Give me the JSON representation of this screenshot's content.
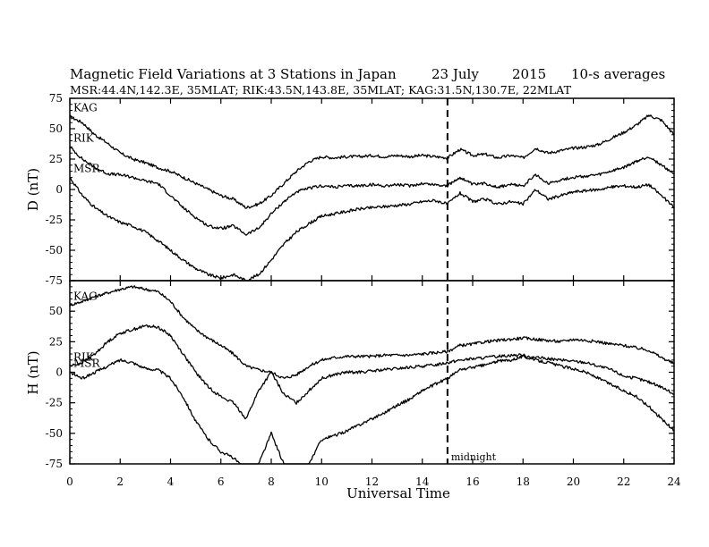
{
  "header": {
    "title": "Magnetic Field Variations at 3 Stations in Japan",
    "date": "23 July",
    "year": "2015",
    "averaging": "10-s averages",
    "stations_line": "MSR:44.4N,142.3E, 35MLAT;  RIK:43.5N,143.8E, 35MLAT;  KAG:31.5N,130.7E, 22MLAT"
  },
  "chart_data": {
    "type": "line",
    "xlabel": "Universal Time",
    "xlim": [
      0,
      24
    ],
    "x_ticks": [
      0,
      2,
      4,
      6,
      8,
      10,
      12,
      14,
      16,
      18,
      20,
      22,
      24
    ],
    "marker": {
      "x": 15,
      "label": "midnight",
      "style": "dashed"
    },
    "panels": [
      {
        "id": "D",
        "ylabel": "D (nT)",
        "ylim": [
          -75,
          75
        ],
        "y_ticks": [
          75,
          50,
          25,
          0,
          -25,
          -50,
          -75
        ],
        "series": [
          {
            "name": "KAG",
            "x": [
              0,
              0.5,
              1,
              1.5,
              2,
              2.5,
              3,
              3.5,
              4,
              4.5,
              5,
              5.5,
              6,
              6.5,
              7,
              7.5,
              8,
              8.5,
              9,
              9.5,
              10,
              10.5,
              11,
              11.5,
              12,
              12.5,
              13,
              13.5,
              14,
              14.5,
              15,
              15.5,
              16,
              16.5,
              17,
              17.5,
              18,
              18.5,
              19,
              19.5,
              20,
              20.5,
              21,
              21.5,
              22,
              22.5,
              23,
              23.5,
              24
            ],
            "y": [
              60,
              55,
              45,
              38,
              30,
              25,
              22,
              18,
              15,
              10,
              5,
              0,
              -5,
              -8,
              -15,
              -12,
              -5,
              5,
              15,
              23,
              27,
              26,
              27,
              27,
              28,
              27,
              28,
              27,
              28,
              27,
              26,
              33,
              28,
              29,
              26,
              28,
              26,
              34,
              30,
              32,
              34,
              35,
              37,
              42,
              47,
              53,
              61,
              57,
              45
            ]
          },
          {
            "name": "RIK",
            "x": [
              0,
              0.5,
              1,
              1.5,
              2,
              2.5,
              3,
              3.5,
              4,
              4.5,
              5,
              5.5,
              6,
              6.5,
              7,
              7.5,
              8,
              8.5,
              9,
              9.5,
              10,
              10.5,
              11,
              11.5,
              12,
              12.5,
              13,
              13.5,
              14,
              14.5,
              15,
              15.5,
              16,
              16.5,
              17,
              17.5,
              18,
              18.5,
              19,
              19.5,
              20,
              20.5,
              21,
              21.5,
              22,
              22.5,
              23,
              23.5,
              24
            ],
            "y": [
              35,
              25,
              18,
              13,
              12,
              10,
              7,
              5,
              -5,
              -15,
              -23,
              -30,
              -32,
              -30,
              -37,
              -32,
              -20,
              -10,
              -2,
              1,
              3,
              2,
              3,
              3,
              4,
              3,
              4,
              3,
              5,
              4,
              3,
              10,
              4,
              5,
              2,
              4,
              3,
              12,
              5,
              8,
              10,
              11,
              12,
              15,
              18,
              23,
              27,
              20,
              13
            ]
          },
          {
            "name": "MSR",
            "x": [
              0,
              0.5,
              1,
              1.5,
              2,
              2.5,
              3,
              3.5,
              4,
              4.5,
              5,
              5.5,
              6,
              6.5,
              7,
              7.5,
              8,
              8.5,
              9,
              9.5,
              10,
              10.5,
              11,
              11.5,
              12,
              12.5,
              13,
              13.5,
              14,
              14.5,
              15,
              15.5,
              16,
              16.5,
              17,
              17.5,
              18,
              18.5,
              19,
              19.5,
              20,
              20.5,
              21,
              21.5,
              22,
              22.5,
              23,
              23.5,
              24
            ],
            "y": [
              10,
              -5,
              -15,
              -22,
              -27,
              -30,
              -35,
              -42,
              -50,
              -58,
              -65,
              -70,
              -73,
              -70,
              -75,
              -70,
              -58,
              -45,
              -35,
              -28,
              -22,
              -20,
              -18,
              -16,
              -15,
              -14,
              -13,
              -12,
              -10,
              -9,
              -12,
              -3,
              -10,
              -8,
              -12,
              -10,
              -12,
              0,
              -8,
              -5,
              -2,
              -1,
              0,
              2,
              3,
              2,
              4,
              -5,
              -15
            ]
          }
        ]
      },
      {
        "id": "H",
        "ylabel": "H (nT)",
        "ylim": [
          -75,
          75
        ],
        "y_ticks": [
          75,
          50,
          25,
          0,
          -25,
          -50,
          -75
        ],
        "series": [
          {
            "name": "KAG",
            "x": [
              0,
              0.5,
              1,
              1.5,
              2,
              2.5,
              3,
              3.5,
              4,
              4.5,
              5,
              5.5,
              6,
              6.5,
              7,
              7.5,
              8,
              8.5,
              9,
              9.5,
              10,
              10.5,
              11,
              11.5,
              12,
              12.5,
              13,
              13.5,
              14,
              14.5,
              15,
              15.5,
              16,
              16.5,
              17,
              17.5,
              18,
              18.5,
              19,
              19.5,
              20,
              20.5,
              21,
              21.5,
              22,
              22.5,
              23,
              23.5,
              24
            ],
            "y": [
              55,
              58,
              62,
              65,
              68,
              70,
              68,
              66,
              58,
              45,
              35,
              28,
              22,
              15,
              5,
              2,
              0,
              -5,
              -2,
              5,
              10,
              12,
              13,
              13,
              13,
              14,
              14,
              14,
              15,
              16,
              17,
              22,
              23,
              25,
              26,
              27,
              28,
              27,
              26,
              25,
              27,
              26,
              25,
              23,
              22,
              20,
              18,
              12,
              7
            ]
          },
          {
            "name": "RIK",
            "x": [
              0,
              0.5,
              1,
              1.5,
              2,
              2.5,
              3,
              3.5,
              4,
              4.5,
              5,
              5.5,
              6,
              6.5,
              7,
              7.5,
              8,
              8.5,
              9,
              9.5,
              10,
              10.5,
              11,
              11.5,
              12,
              12.5,
              13,
              13.5,
              14,
              14.5,
              15,
              15.5,
              16,
              16.5,
              17,
              17.5,
              18,
              18.5,
              19,
              19.5,
              20,
              20.5,
              21,
              21.5,
              22,
              22.5,
              23,
              23.5,
              24
            ],
            "y": [
              5,
              8,
              15,
              25,
              32,
              35,
              38,
              37,
              30,
              15,
              0,
              -12,
              -20,
              -25,
              -38,
              -15,
              0,
              -18,
              -25,
              -15,
              -5,
              -2,
              0,
              0,
              1,
              2,
              3,
              4,
              5,
              6,
              8,
              10,
              11,
              12,
              13,
              14,
              14,
              12,
              11,
              10,
              9,
              8,
              5,
              2,
              -3,
              -5,
              -8,
              -12,
              -18
            ]
          },
          {
            "name": "MSR",
            "x": [
              0,
              0.5,
              1,
              1.5,
              2,
              2.5,
              3,
              3.5,
              4,
              4.5,
              5,
              5.5,
              6,
              6.5,
              7,
              7.5,
              8,
              8.5,
              9,
              9.5,
              10,
              10.5,
              11,
              11.5,
              12,
              12.5,
              13,
              13.5,
              14,
              14.5,
              15,
              15.5,
              16,
              16.5,
              17,
              17.5,
              18,
              18.5,
              19,
              19.5,
              20,
              20.5,
              21,
              21.5,
              22,
              22.5,
              23,
              23.5,
              24
            ],
            "y": [
              0,
              -5,
              0,
              5,
              10,
              8,
              3,
              2,
              -5,
              -20,
              -40,
              -55,
              -65,
              -70,
              -80,
              -75,
              -50,
              -75,
              -85,
              -75,
              -55,
              -52,
              -48,
              -43,
              -38,
              -33,
              -27,
              -22,
              -15,
              -10,
              -5,
              2,
              4,
              6,
              9,
              10,
              13,
              10,
              8,
              5,
              3,
              0,
              -5,
              -10,
              -15,
              -20,
              -28,
              -38,
              -48
            ]
          }
        ]
      }
    ]
  }
}
